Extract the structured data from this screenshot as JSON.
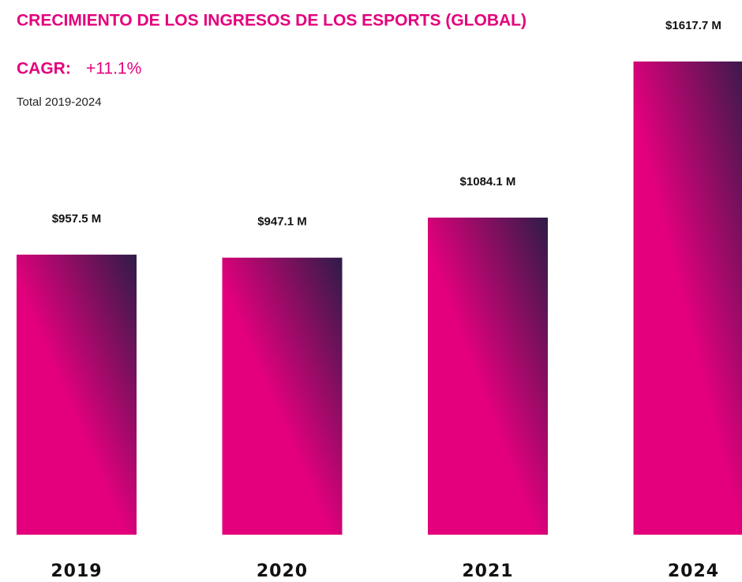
{
  "chart_data": {
    "type": "bar",
    "title": "CRECIMIENTO DE LOS INGRESOS DE LOS ESPORTS (GLOBAL)",
    "cagr_label": "CAGR:",
    "cagr": "+11.1%",
    "subtitle": "Total 2019-2024",
    "categories": [
      "2019",
      "2020",
      "2021",
      "2024"
    ],
    "values": [
      957.5,
      947.1,
      1084.1,
      1617.7
    ],
    "value_labels": [
      "$957.5 M",
      "$947.1 M",
      "$1084.1 M",
      "$1617.7 M"
    ],
    "colors": [
      "#e4007c",
      "#2e1c48"
    ]
  }
}
